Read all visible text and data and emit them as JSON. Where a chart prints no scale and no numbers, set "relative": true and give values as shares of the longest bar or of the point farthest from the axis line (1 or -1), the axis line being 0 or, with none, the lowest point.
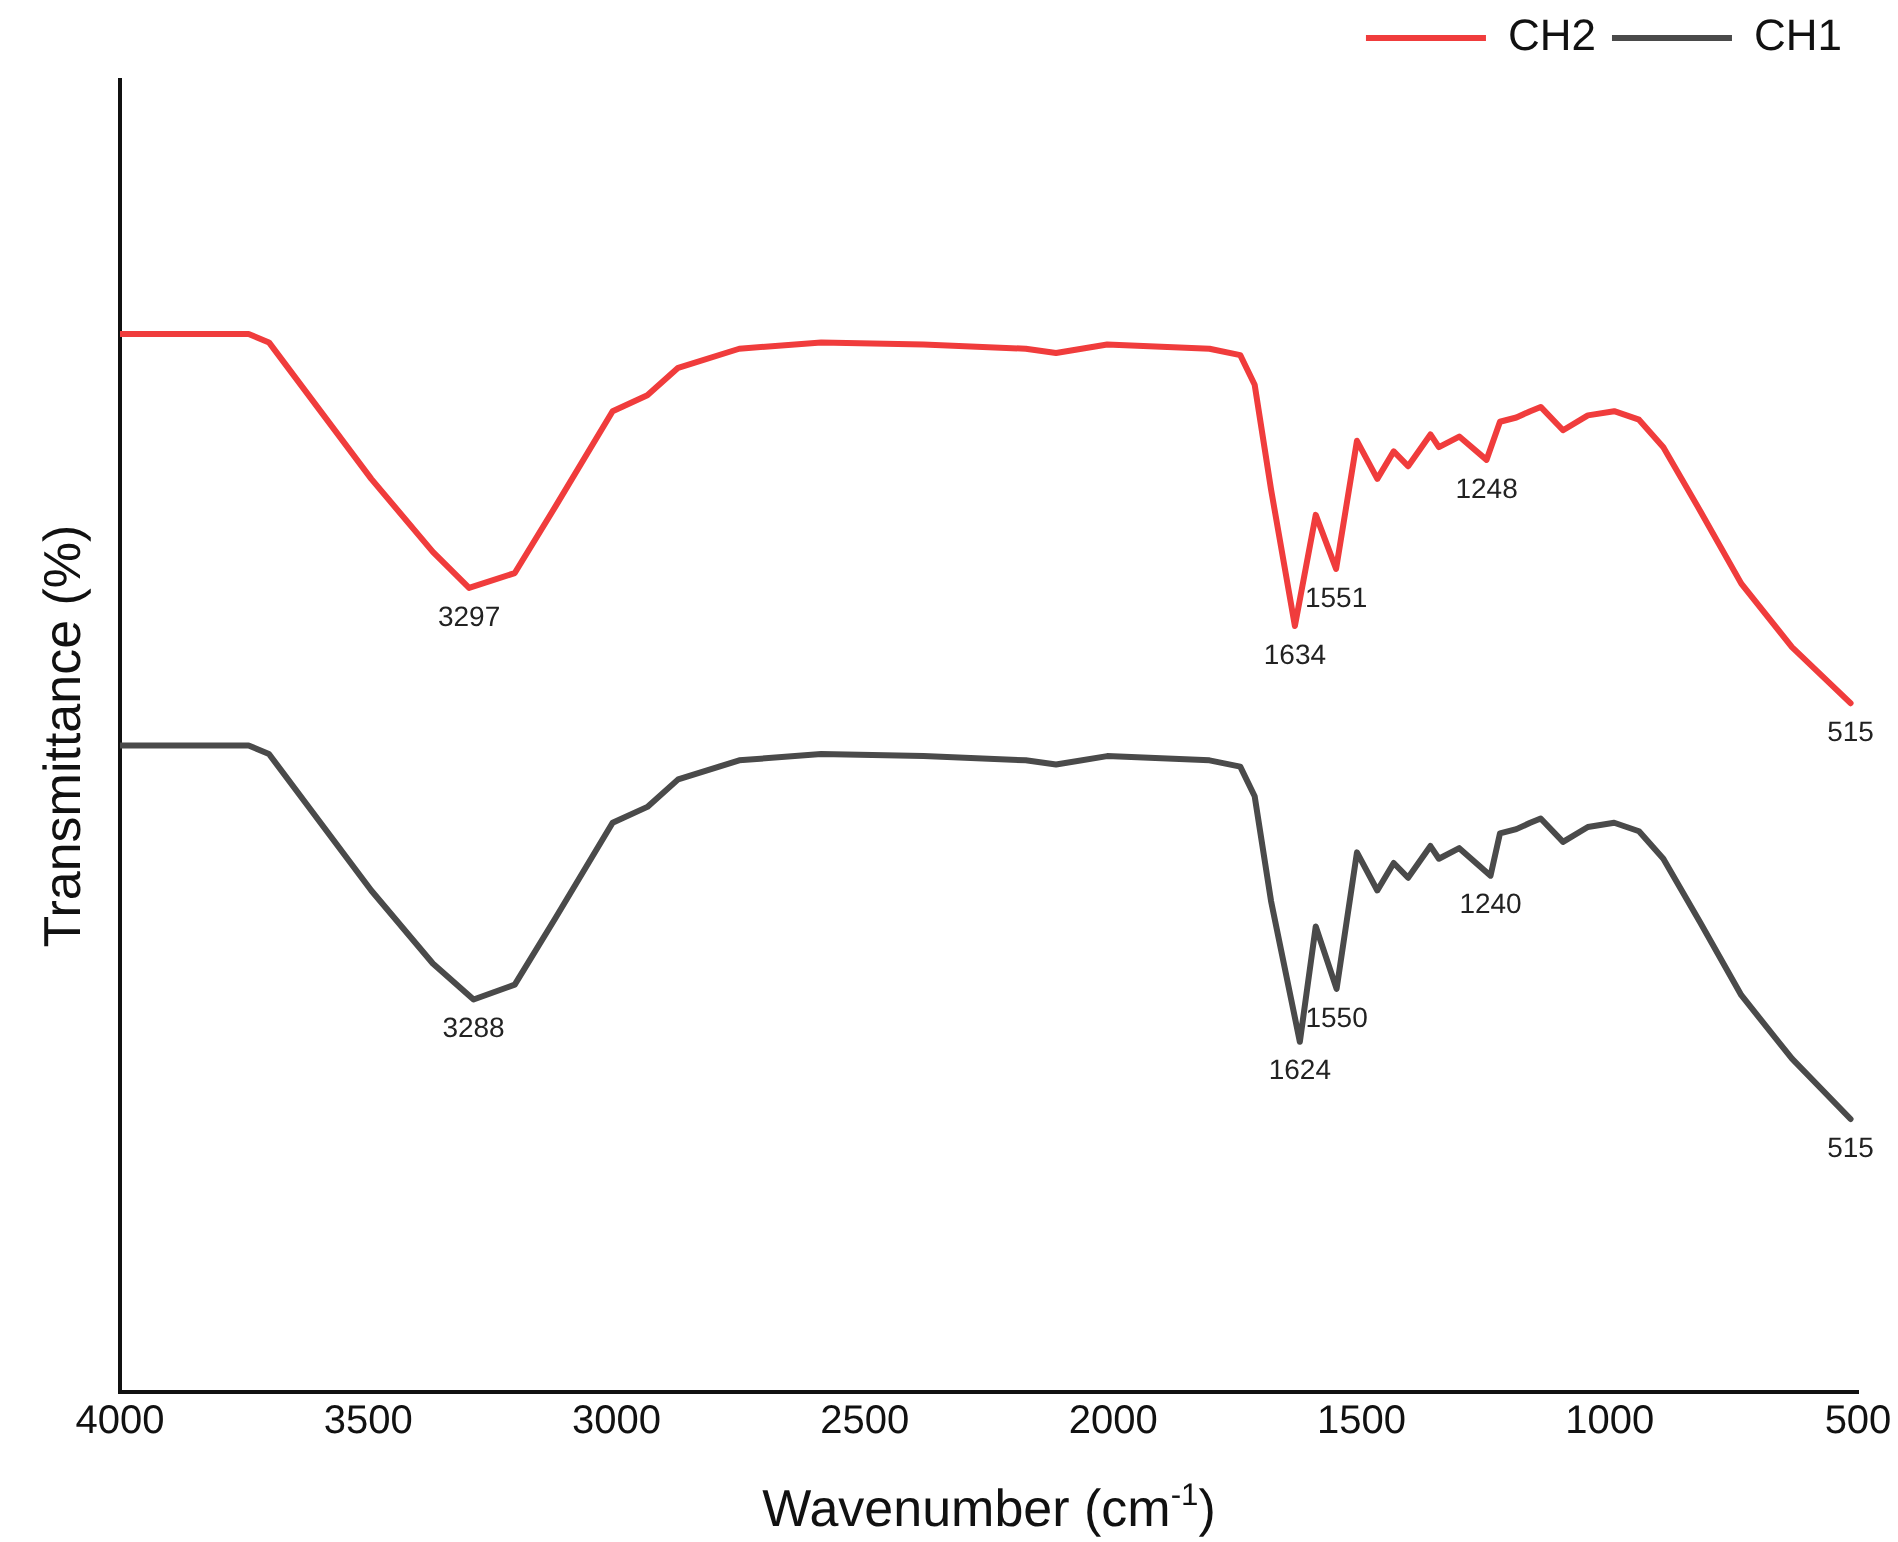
{
  "chart_data": {
    "type": "line",
    "relative": true,
    "xlabel": "Wavenumber (cm$^{-1}$)",
    "ylabel": "Transmittance (%)",
    "xlim": [
      4000,
      500
    ],
    "xticks": [
      4000,
      3500,
      3000,
      2500,
      2000,
      1500,
      1000,
      500
    ],
    "legend": "top right",
    "grid": false,
    "marker": "none",
    "line_style": "solid",
    "series": [
      {
        "name": "CH2",
        "color": "#f03c3c",
        "x": [
          4000,
          3741,
          3700,
          3617,
          3494,
          3370,
          3297,
          3205,
          3123,
          3008,
          2938,
          2876,
          2753,
          2588,
          2382,
          2176,
          2115,
          2012,
          1806,
          1744,
          1715,
          1682,
          1634,
          1592,
          1551,
          1509,
          1468,
          1435,
          1406,
          1361,
          1344,
          1303,
          1248,
          1221,
          1188,
          1160,
          1139,
          1094,
          1044,
          991,
          941,
          892,
          818,
          735,
          633,
          515
        ],
        "values": [
          1.0,
          1.0,
          0.992,
          0.94,
          0.863,
          0.794,
          0.76,
          0.774,
          0.837,
          0.927,
          0.942,
          0.968,
          0.986,
          0.992,
          0.99,
          0.986,
          0.982,
          0.99,
          0.986,
          0.98,
          0.952,
          0.853,
          0.724,
          0.829,
          0.778,
          0.899,
          0.863,
          0.889,
          0.875,
          0.905,
          0.893,
          0.903,
          0.881,
          0.917,
          0.921,
          0.927,
          0.931,
          0.909,
          0.923,
          0.927,
          0.919,
          0.893,
          0.833,
          0.764,
          0.704,
          0.651
        ]
      },
      {
        "name": "CH1",
        "color": "#4a4a4a",
        "x": [
          4000,
          3741,
          3700,
          3617,
          3494,
          3370,
          3288,
          3205,
          3123,
          3008,
          2938,
          2876,
          2753,
          2588,
          2382,
          2176,
          2115,
          2012,
          1806,
          1744,
          1715,
          1682,
          1624,
          1592,
          1550,
          1509,
          1468,
          1435,
          1406,
          1361,
          1344,
          1303,
          1240,
          1221,
          1188,
          1160,
          1139,
          1094,
          1044,
          991,
          941,
          892,
          818,
          735,
          633,
          515
        ],
        "values": [
          0.611,
          0.611,
          0.603,
          0.551,
          0.474,
          0.405,
          0.371,
          0.385,
          0.448,
          0.538,
          0.553,
          0.579,
          0.597,
          0.603,
          0.601,
          0.597,
          0.593,
          0.601,
          0.597,
          0.591,
          0.563,
          0.464,
          0.331,
          0.44,
          0.381,
          0.51,
          0.474,
          0.5,
          0.486,
          0.516,
          0.504,
          0.514,
          0.488,
          0.528,
          0.532,
          0.538,
          0.542,
          0.52,
          0.534,
          0.538,
          0.53,
          0.504,
          0.444,
          0.375,
          0.315,
          0.258
        ]
      }
    ],
    "annotations": [
      {
        "text": "3297",
        "x": 3297,
        "y": 0.76
      },
      {
        "text": "1634",
        "x": 1634,
        "y": 0.724
      },
      {
        "text": "1551",
        "x": 1551,
        "y": 0.778
      },
      {
        "text": "1248",
        "x": 1248,
        "y": 0.881
      },
      {
        "text": "515",
        "x": 515,
        "y": 0.651
      },
      {
        "text": "3288",
        "x": 3288,
        "y": 0.371
      },
      {
        "text": "1624",
        "x": 1624,
        "y": 0.331
      },
      {
        "text": "1550",
        "x": 1550,
        "y": 0.381
      },
      {
        "text": "1240",
        "x": 1240,
        "y": 0.488
      },
      {
        "text": "515",
        "x": 515,
        "y": 0.258
      }
    ]
  }
}
